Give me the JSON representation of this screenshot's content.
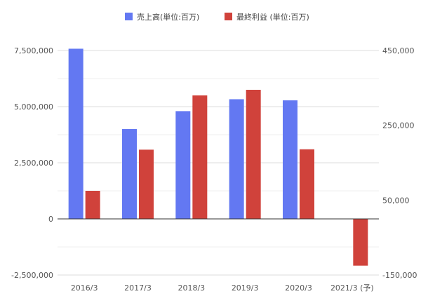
{
  "chart_data": {
    "type": "bar",
    "categories": [
      "2016/3",
      "2017/3",
      "2018/3",
      "2019/3",
      "2020/3",
      "2021/3 (予)"
    ],
    "series": [
      {
        "name": "売上高(単位:百万)",
        "axis": "left",
        "color": "#6378f2",
        "values": [
          7580000,
          4000000,
          4800000,
          5330000,
          5280000,
          null
        ]
      },
      {
        "name": "最終利益 (単位:百万)",
        "axis": "right",
        "color": "#d0423b",
        "values": [
          75000,
          185000,
          330000,
          345000,
          186000,
          -125000
        ]
      }
    ],
    "y_left": {
      "lim": [
        -2500000,
        7500000
      ],
      "ticks": [
        7500000,
        5000000,
        2500000,
        0,
        -2500000
      ],
      "tick_labels": [
        "7,500,000",
        "5,000,000",
        "2,500,000",
        "0",
        "-2,500,000"
      ]
    },
    "y_right": {
      "lim": [
        -150000,
        450000
      ],
      "ticks": [
        450000,
        250000,
        50000,
        -150000
      ],
      "tick_labels": [
        "450,000",
        "250,000",
        "50,000",
        "-150,000"
      ]
    },
    "grid": true,
    "legend_position": "top"
  }
}
